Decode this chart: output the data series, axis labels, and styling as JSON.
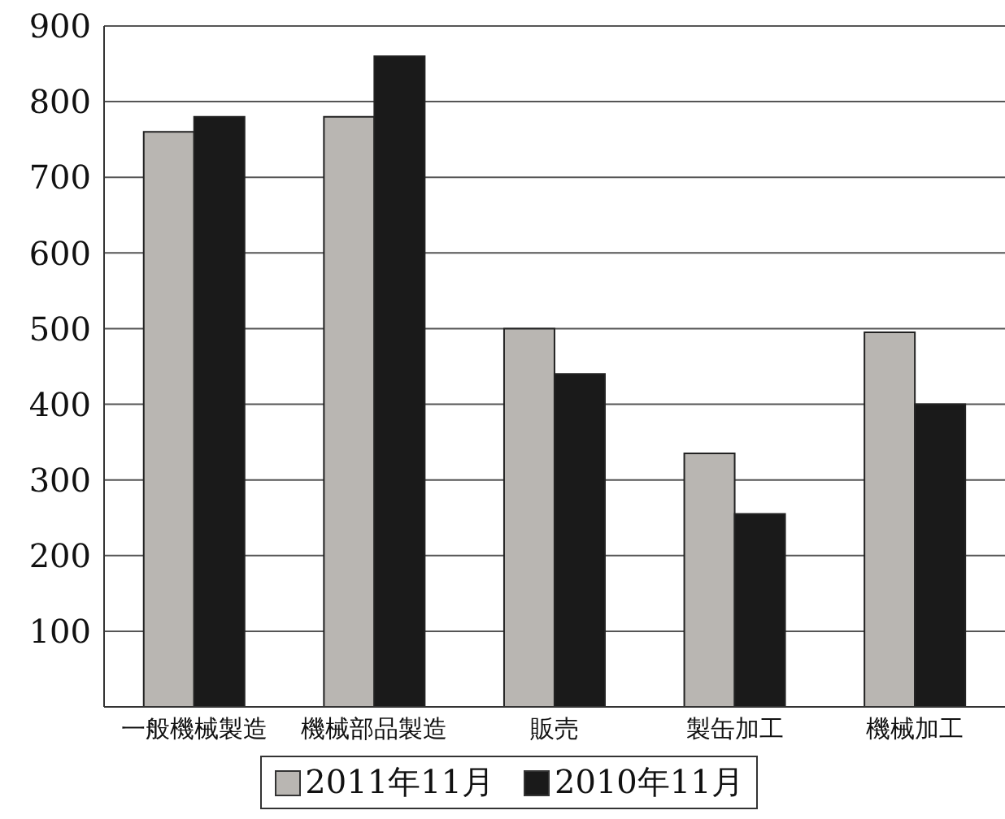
{
  "chart_data": {
    "type": "bar",
    "categories": [
      "一般機械製造",
      "機械部品製造",
      "販売",
      "製缶加工",
      "機械加工"
    ],
    "series": [
      {
        "name": "2011年11月",
        "color": "#b9b6b2",
        "values": [
          760,
          780,
          500,
          335,
          495
        ]
      },
      {
        "name": "2010年11月",
        "color": "#1a1a1a",
        "values": [
          780,
          860,
          440,
          255,
          400
        ]
      }
    ],
    "ylim": [
      0,
      900
    ],
    "yticks": [
      {
        "value": 0,
        "label": null
      },
      100,
      200,
      300,
      400,
      500,
      600,
      700,
      800,
      900
    ],
    "grid": "y",
    "legend": "bottom"
  }
}
